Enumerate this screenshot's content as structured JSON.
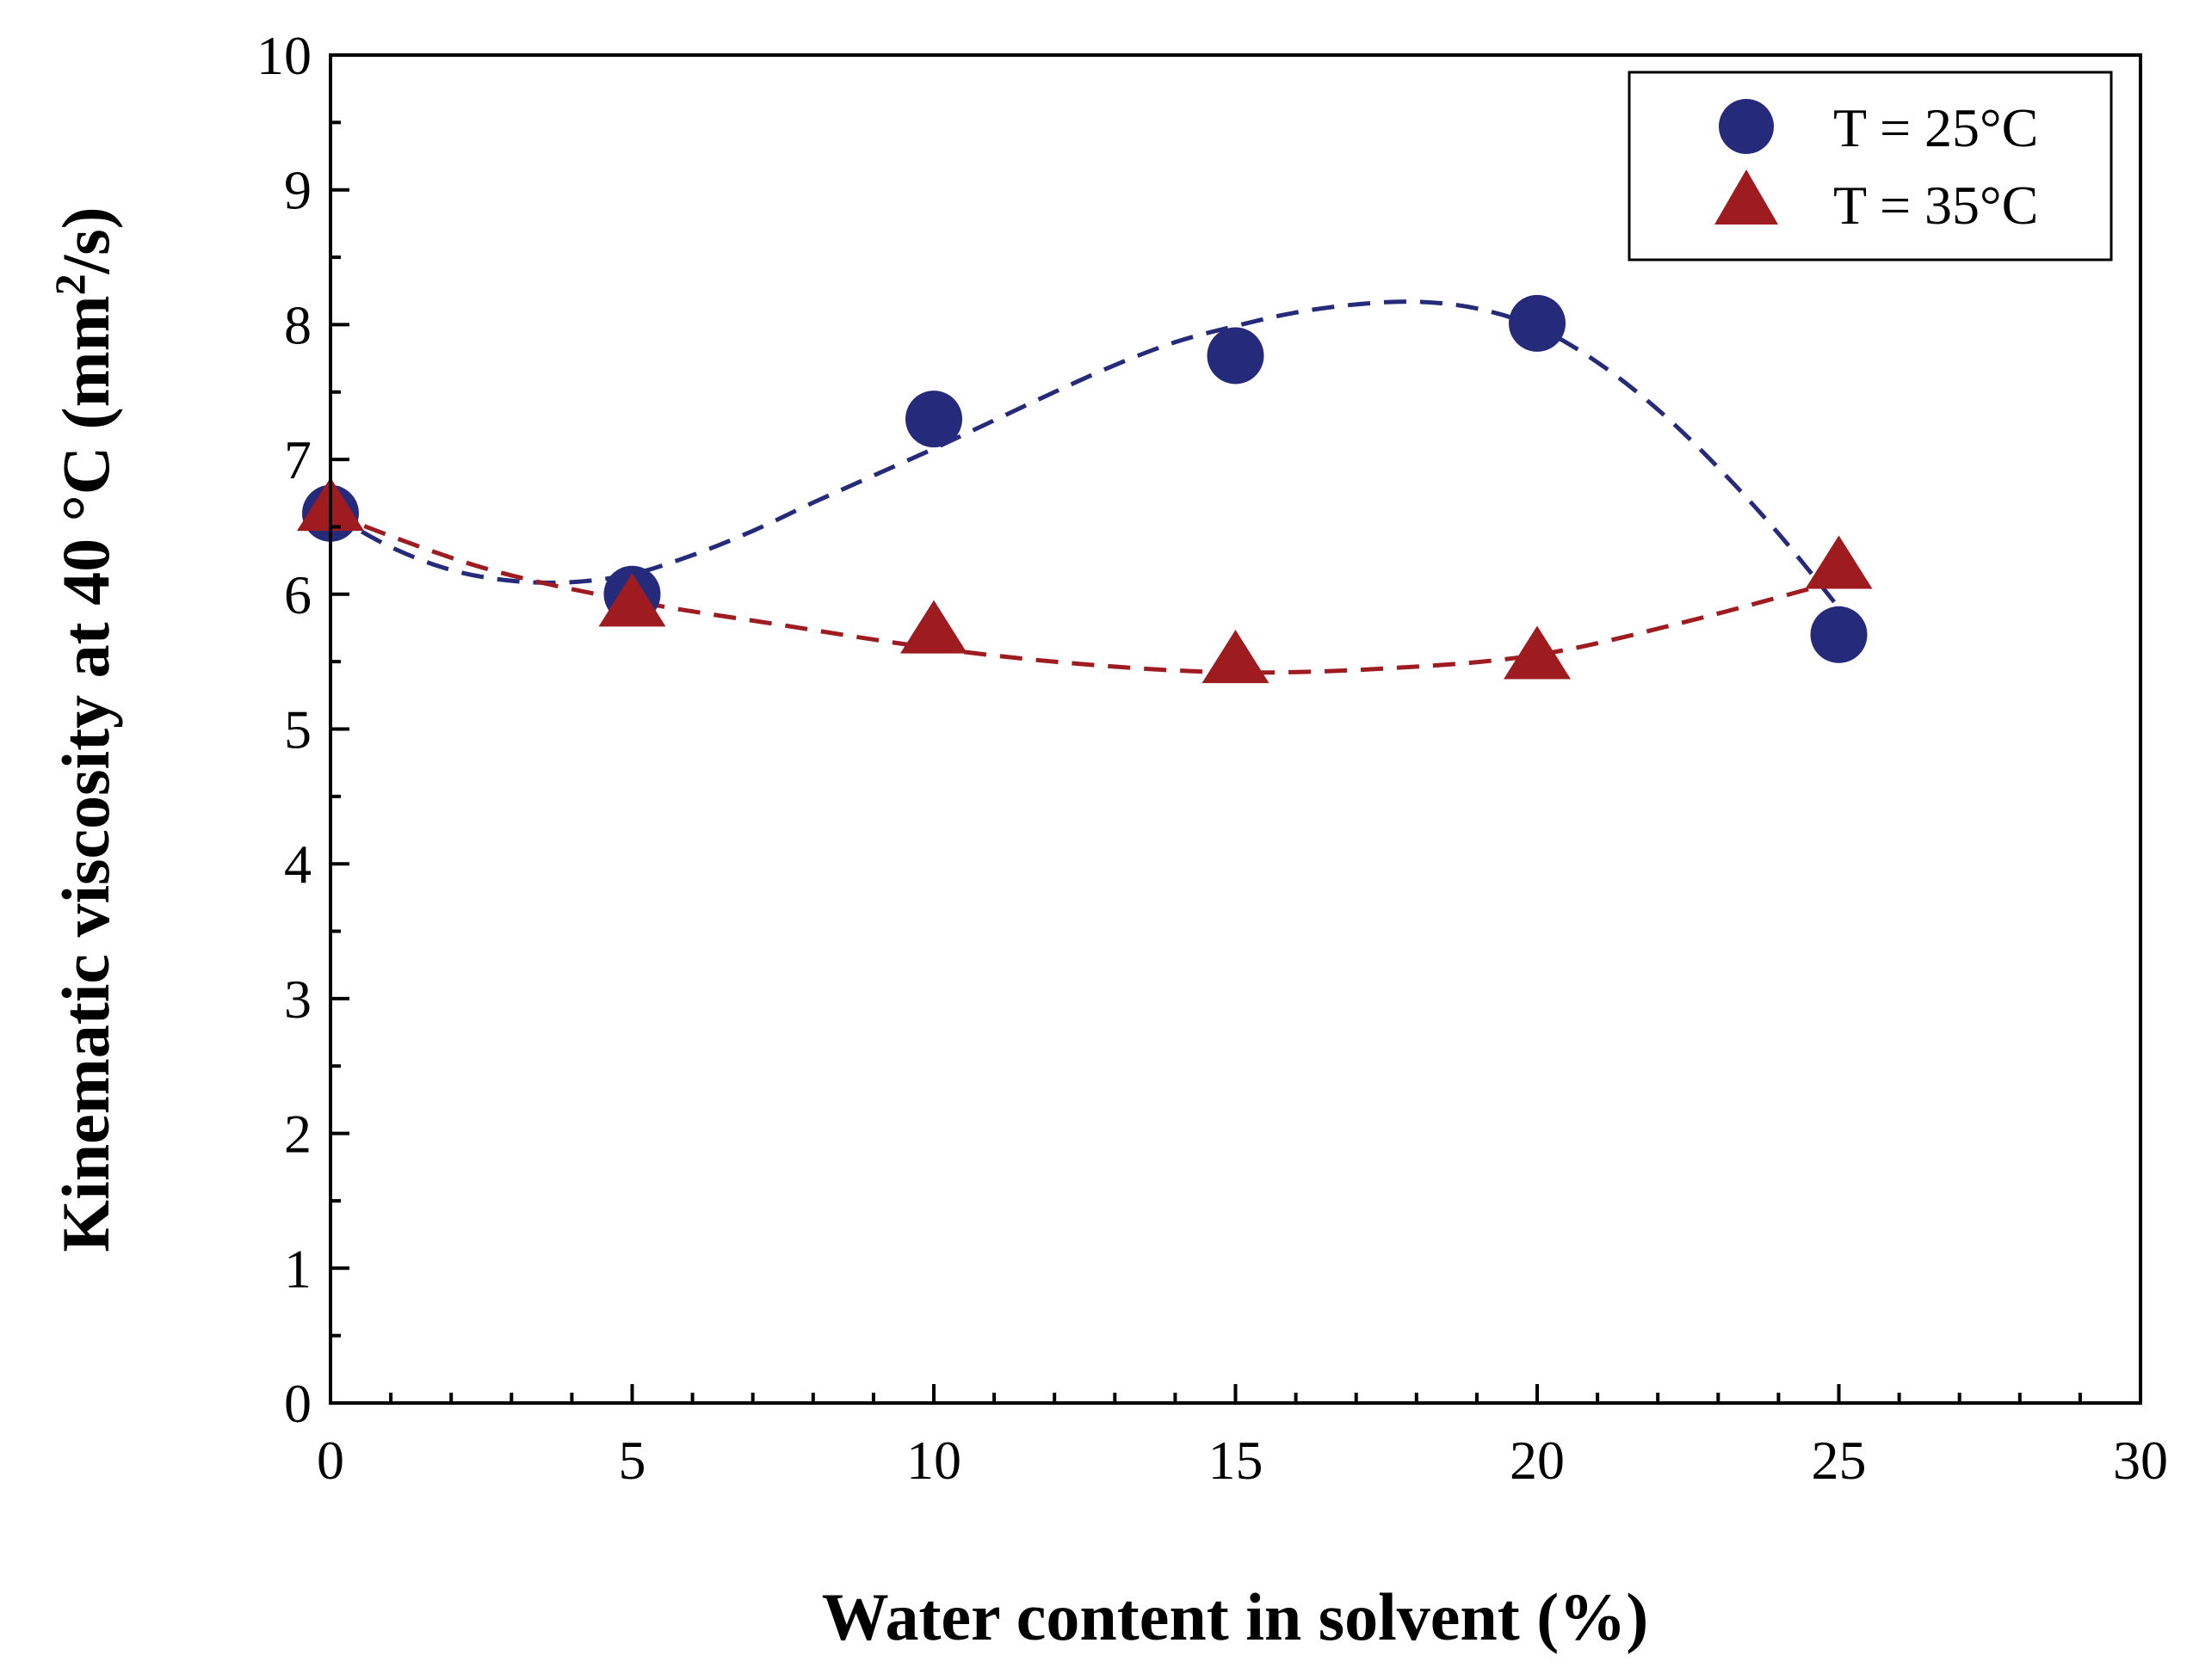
{
  "chart_data": {
    "type": "scatter",
    "title": "",
    "xlabel": "Water content in solvent (%)",
    "ylabel_main": "Kinematic viscosity at 40 °C (mm",
    "ylabel_sup": "2",
    "ylabel_end": "/s)",
    "xlim": [
      0,
      30
    ],
    "ylim": [
      0,
      10
    ],
    "xticks": [
      0,
      5,
      10,
      15,
      20,
      25,
      30
    ],
    "yticks": [
      0,
      1,
      2,
      3,
      4,
      5,
      6,
      7,
      8,
      9,
      10
    ],
    "x_minor_step": 1,
    "y_minor_step": 0.5,
    "grid": false,
    "legend_position": "top-right",
    "series": [
      {
        "name": "T = 25°C",
        "marker": "circle",
        "color": "#262A7A",
        "x": [
          0,
          5,
          10,
          15,
          20,
          25
        ],
        "y": [
          6.6,
          6.0,
          7.3,
          7.77,
          8.01,
          5.7
        ],
        "fit": {
          "style": "dashed",
          "x": [
            0,
            1,
            2,
            3,
            4,
            5,
            6,
            7,
            8,
            9,
            10,
            11,
            12,
            13,
            14,
            15,
            16,
            17,
            18,
            19,
            20,
            21,
            22,
            23,
            24,
            25
          ],
          "y": [
            6.6,
            6.35,
            6.18,
            6.1,
            6.09,
            6.15,
            6.29,
            6.47,
            6.68,
            6.88,
            7.08,
            7.29,
            7.5,
            7.7,
            7.87,
            7.99,
            8.09,
            8.15,
            8.17,
            8.12,
            7.98,
            7.72,
            7.37,
            6.94,
            6.45,
            5.9
          ]
        }
      },
      {
        "name": "T = 35°C",
        "marker": "triangle",
        "color": "#9E1B20",
        "x": [
          0,
          5,
          10,
          15,
          20,
          25
        ],
        "y": [
          6.63,
          5.92,
          5.72,
          5.5,
          5.53,
          6.2
        ],
        "fit": {
          "style": "dashed",
          "x": [
            0,
            2.5,
            5,
            7.5,
            10,
            12.5,
            15,
            17.5,
            20,
            22.5,
            25
          ],
          "y": [
            6.6,
            6.2,
            5.95,
            5.77,
            5.6,
            5.48,
            5.42,
            5.45,
            5.55,
            5.8,
            6.1
          ]
        }
      }
    ]
  }
}
